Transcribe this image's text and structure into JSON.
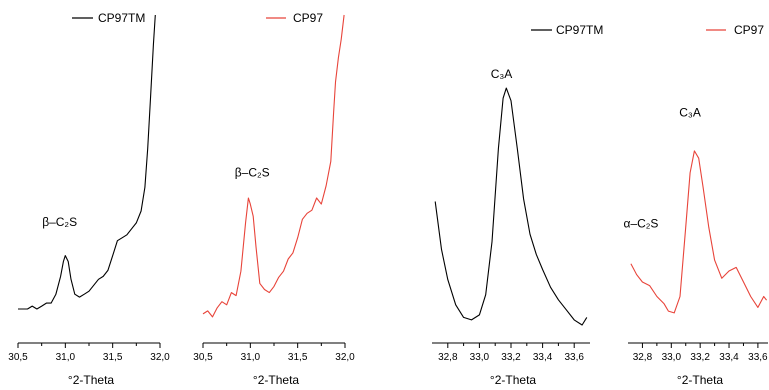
{
  "chart_data": [
    {
      "type": "line",
      "xlabel": "°2-Theta",
      "xlim": [
        30.5,
        32.0
      ],
      "ylim": [
        0,
        100
      ],
      "xticks": [
        "30,5",
        "31,0",
        "31,5",
        "32,0"
      ],
      "series": [
        {
          "name": "CP97TM",
          "color": "#000000",
          "x": [
            30.5,
            30.55,
            30.6,
            30.65,
            30.7,
            30.75,
            30.8,
            30.85,
            30.9,
            30.95,
            30.98,
            31.0,
            31.03,
            31.06,
            31.1,
            31.15,
            31.2,
            31.25,
            31.3,
            31.35,
            31.4,
            31.45,
            31.5,
            31.55,
            31.6,
            31.65,
            31.7,
            31.75,
            31.8,
            31.84,
            31.87,
            31.9,
            31.93,
            31.95
          ],
          "y": [
            1,
            1,
            1,
            2,
            1,
            2,
            3,
            3,
            6,
            12,
            17,
            19,
            17,
            11,
            6,
            5,
            6,
            7,
            9,
            11,
            12,
            14,
            19,
            24,
            25,
            26,
            28,
            30,
            34,
            42,
            55,
            72,
            90,
            100
          ]
        }
      ],
      "annotations": [
        {
          "text": "β–C₂S",
          "x": 30.94,
          "y": 29
        }
      ]
    },
    {
      "type": "line",
      "xlabel": "°2-Theta",
      "xlim": [
        30.5,
        32.0
      ],
      "ylim": [
        0,
        100
      ],
      "xticks": [
        "30,5",
        "31,0",
        "31,5",
        "32,0"
      ],
      "series": [
        {
          "name": "CP97",
          "color": "#e8443a",
          "x": [
            30.5,
            30.55,
            30.6,
            30.65,
            30.7,
            30.75,
            30.8,
            30.85,
            30.9,
            30.95,
            30.98,
            31.0,
            31.03,
            31.06,
            31.1,
            31.15,
            31.2,
            31.25,
            31.3,
            31.35,
            31.4,
            31.45,
            31.5,
            31.55,
            31.6,
            31.65,
            31.7,
            31.75,
            31.8,
            31.85,
            31.88,
            31.9,
            31.93,
            31.96,
            31.99
          ],
          "y": [
            2,
            3,
            1,
            4,
            6,
            5,
            9,
            8,
            16,
            32,
            40,
            38,
            34,
            24,
            12,
            10,
            9,
            11,
            14,
            16,
            20,
            22,
            27,
            33,
            35,
            36,
            40,
            38,
            44,
            52,
            68,
            78,
            86,
            92,
            100
          ]
        }
      ],
      "annotations": [
        {
          "text": "β–C₂S",
          "x": 31.02,
          "y": 47
        }
      ]
    },
    {
      "type": "line",
      "xlabel": "°2-Theta",
      "xlim": [
        32.7,
        33.7
      ],
      "ylim": [
        0,
        100
      ],
      "xticks": [
        "32,8",
        "33,0",
        "33,2",
        "33,4",
        "33,6"
      ],
      "series": [
        {
          "name": "CP97TM",
          "color": "#000000",
          "x": [
            32.72,
            32.76,
            32.8,
            32.85,
            32.9,
            32.95,
            33.0,
            33.04,
            33.08,
            33.12,
            33.15,
            33.17,
            33.2,
            33.24,
            33.28,
            33.32,
            33.36,
            33.4,
            33.45,
            33.5,
            33.55,
            33.6,
            33.65,
            33.68
          ],
          "y": [
            51,
            32,
            20,
            10,
            5,
            4,
            6,
            14,
            35,
            72,
            92,
            96,
            91,
            72,
            52,
            38,
            30,
            24,
            17,
            12,
            8,
            4,
            2,
            5
          ]
        }
      ],
      "annotations": [
        {
          "text": "C₃A",
          "x": 33.14,
          "y": 100
        }
      ]
    },
    {
      "type": "line",
      "xlabel": "°2-Theta",
      "xlim": [
        32.7,
        33.67
      ],
      "ylim": [
        0,
        100
      ],
      "xticks": [
        "32,8",
        "33,0",
        "33,2",
        "33,4",
        "33,6"
      ],
      "series": [
        {
          "name": "CP97",
          "color": "#e8443a",
          "x": [
            32.72,
            32.76,
            32.8,
            32.85,
            32.9,
            32.95,
            32.98,
            33.02,
            33.06,
            33.1,
            33.13,
            33.16,
            33.19,
            33.22,
            33.26,
            33.3,
            33.35,
            33.4,
            33.45,
            33.5,
            33.55,
            33.6,
            33.64,
            33.66
          ],
          "y": [
            32,
            26,
            22,
            20,
            14,
            10,
            6,
            5,
            14,
            52,
            82,
            94,
            90,
            74,
            52,
            34,
            24,
            28,
            30,
            22,
            14,
            8,
            14,
            12
          ]
        }
      ],
      "annotations": [
        {
          "text": "C₃A",
          "x": 33.13,
          "y": 113
        },
        {
          "text": "α–C₂S",
          "x": 32.79,
          "y": 52
        }
      ]
    }
  ]
}
